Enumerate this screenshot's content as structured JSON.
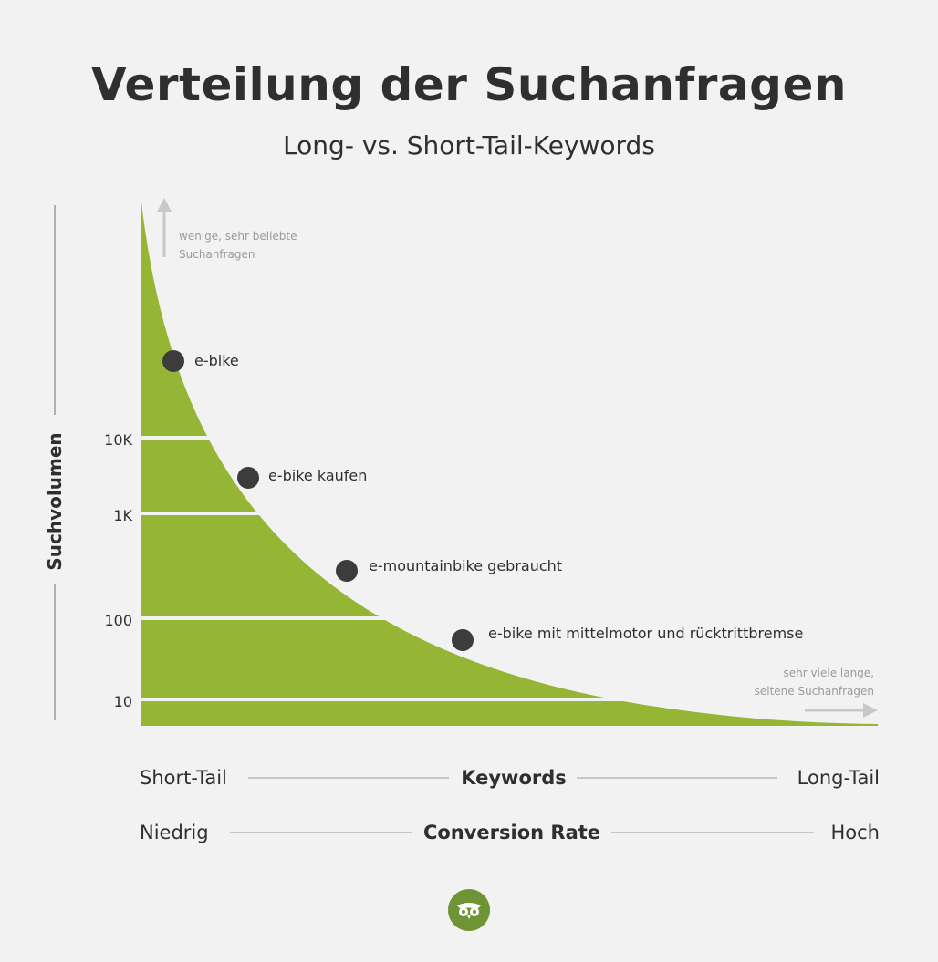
{
  "header": {
    "title": "Verteilung der Suchanfragen",
    "subtitle": "Long- vs. Short-Tail-Keywords"
  },
  "chart_data": {
    "type": "area",
    "title": "Verteilung der Suchanfragen",
    "subtitle": "Long- vs. Short-Tail-Keywords",
    "ylabel": "Suchvolumen",
    "yscale": "log",
    "yticks": [
      "10K",
      "1K",
      "100",
      "10"
    ],
    "area_color": "#95b534",
    "points": [
      {
        "label": "e-bike",
        "rank": 1,
        "volume_level": "> 10K"
      },
      {
        "label": "e-bike kaufen",
        "rank": 2,
        "volume_level": "1K–10K"
      },
      {
        "label": "e-mountainbike gebraucht",
        "rank": 3,
        "volume_level": "100–1K"
      },
      {
        "label": "e-bike mit mittelmotor und rücktrittbremse",
        "rank": 4,
        "volume_level": "10–100"
      }
    ],
    "annotations": {
      "top": [
        "wenige, sehr beliebte",
        "Suchanfragen"
      ],
      "right": [
        "sehr viele lange,",
        "seltene Suchanfragen"
      ]
    }
  },
  "axes_rows": {
    "keywords": {
      "left": "Short-Tail",
      "center": "Keywords",
      "right": "Long-Tail"
    },
    "conversion": {
      "left": "Niedrig",
      "center": "Conversion Rate",
      "right": "Hoch"
    }
  },
  "colors": {
    "background": "#f2f2f2",
    "area": "#95b534",
    "text": "#2f302e",
    "point": "#3c3c3c",
    "logo": "#6f9435"
  },
  "icons": {
    "logo": "owl-icon"
  }
}
